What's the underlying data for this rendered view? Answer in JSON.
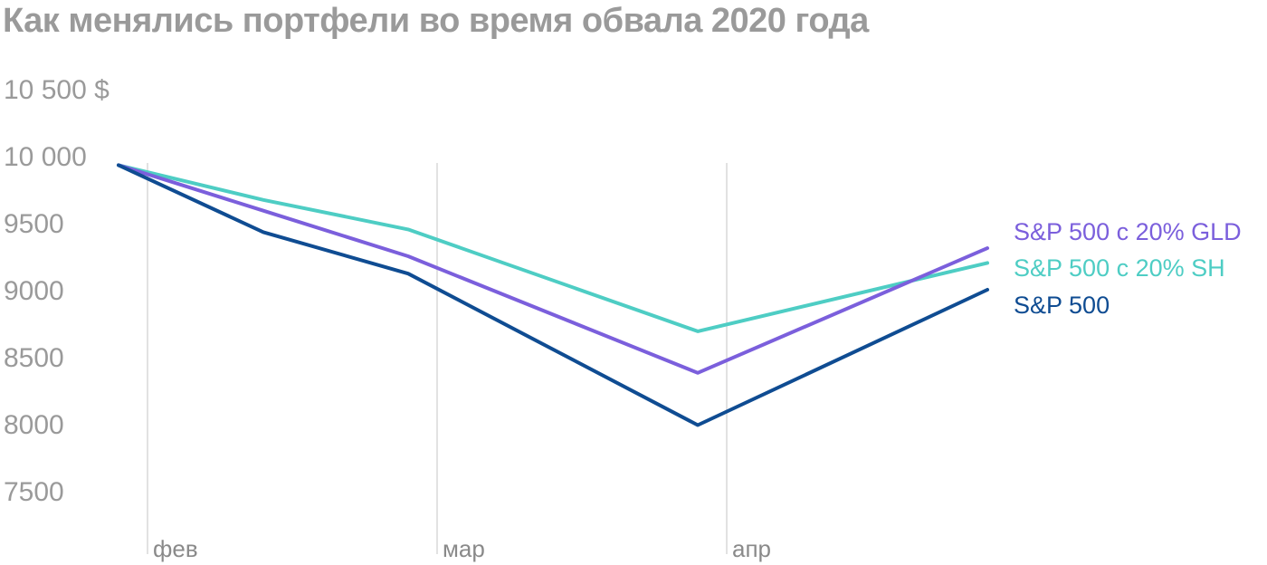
{
  "chart_data": {
    "type": "line",
    "title": "Как менялись портфели во время обвала 2020 года",
    "xlabel": "",
    "ylabel": "",
    "ylim": [
      7250,
      10750
    ],
    "y_ticks": [
      {
        "value": 10500,
        "label": "10 500 $"
      },
      {
        "value": 10000,
        "label": "10 000"
      },
      {
        "value": 9500,
        "label": "9500"
      },
      {
        "value": 9000,
        "label": "9000"
      },
      {
        "value": 8500,
        "label": "8500"
      },
      {
        "value": 8000,
        "label": "8000"
      },
      {
        "value": 7500,
        "label": "7500"
      }
    ],
    "x_months": [
      {
        "label": "фев",
        "x": 0.1
      },
      {
        "label": "мар",
        "x": 1.1
      },
      {
        "label": "апр",
        "x": 2.1
      }
    ],
    "grid": "vertical lines at month starts",
    "legend": "right, next to line ends",
    "x": [
      0,
      0.5,
      1,
      2,
      3
    ],
    "series": [
      {
        "name": "S&P 500 с 20% GLD",
        "color": "#7b5fdc",
        "values": [
          9930,
          9590,
          9250,
          8380,
          9310
        ]
      },
      {
        "name": "S&P 500 с 20% SH",
        "color": "#4ecdc4",
        "values": [
          9930,
          9670,
          9450,
          8690,
          9200
        ]
      },
      {
        "name": "S&P 500",
        "color": "#0f4c92",
        "values": [
          9930,
          9430,
          9120,
          7990,
          9000
        ]
      }
    ]
  }
}
